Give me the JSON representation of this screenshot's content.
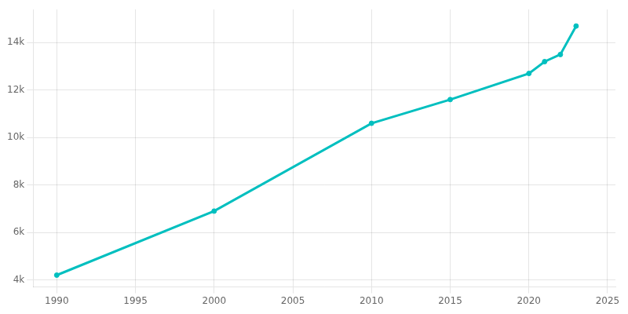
{
  "chart_data": {
    "type": "line",
    "x": [
      1990,
      2000,
      2010,
      2015,
      2020,
      2021,
      2022,
      2023
    ],
    "values": [
      4200,
      6900,
      10600,
      11600,
      12700,
      13200,
      13500,
      14700
    ],
    "color": "#00BFBF",
    "marker": "circle",
    "xlim": [
      1988.5,
      2025.5
    ],
    "xticks": [
      1990,
      1995,
      2000,
      2005,
      2010,
      2015,
      2020,
      2025
    ],
    "ylim": [
      3700,
      15400
    ],
    "yticks": [
      {
        "value": 4000,
        "label": "4k"
      },
      {
        "value": 6000,
        "label": "6k"
      },
      {
        "value": 8000,
        "label": "8k"
      },
      {
        "value": 10000,
        "label": "10k"
      },
      {
        "value": 12000,
        "label": "12k"
      },
      {
        "value": 14000,
        "label": "14k"
      }
    ],
    "grid": true
  }
}
